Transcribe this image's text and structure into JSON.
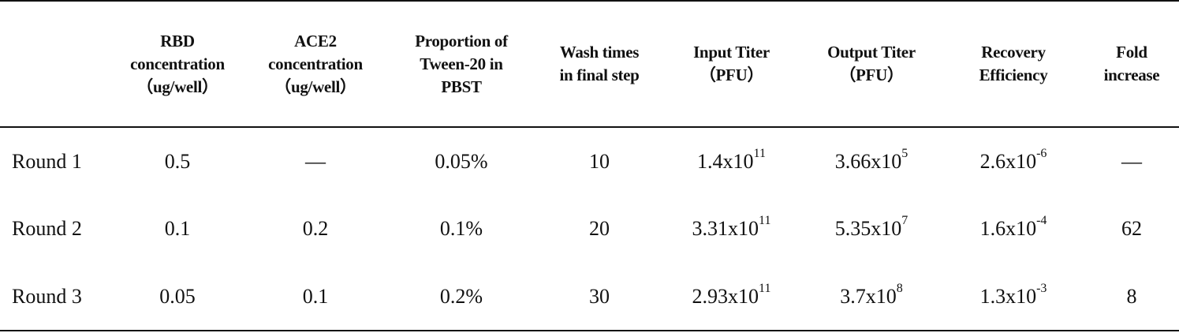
{
  "table": {
    "headers": [
      [
        ""
      ],
      [
        "RBD",
        "concentration",
        "（ug/well）"
      ],
      [
        "ACE2",
        "concentration",
        "（ug/well）"
      ],
      [
        "Proportion of",
        "Tween-20 in",
        "PBST"
      ],
      [
        "Wash times",
        "in final step"
      ],
      [
        "Input Titer",
        "（PFU）"
      ],
      [
        "Output Titer",
        "（PFU）"
      ],
      [
        "Recovery",
        "Efficiency"
      ],
      [
        "Fold",
        "increase"
      ]
    ],
    "rows": [
      {
        "label": "Round 1",
        "rbd": "0.5",
        "ace2": "—",
        "tween": "0.05%",
        "wash": "10",
        "input": {
          "base": "1.4x10",
          "exp": "11"
        },
        "output": {
          "base": "3.66x10",
          "exp": "5"
        },
        "recovery": {
          "base": "2.6x10",
          "exp": "-6"
        },
        "fold": "—"
      },
      {
        "label": "Round 2",
        "rbd": "0.1",
        "ace2": "0.2",
        "tween": "0.1%",
        "wash": "20",
        "input": {
          "base": "3.31x10",
          "exp": "11"
        },
        "output": {
          "base": "5.35x10",
          "exp": "7"
        },
        "recovery": {
          "base": "1.6x10",
          "exp": "-4"
        },
        "fold": "62"
      },
      {
        "label": "Round 3",
        "rbd": "0.05",
        "ace2": "0.1",
        "tween": "0.2%",
        "wash": "30",
        "input": {
          "base": "2.93x10",
          "exp": "11"
        },
        "output": {
          "base": "3.7x10",
          "exp": "8"
        },
        "recovery": {
          "base": "1.3x10",
          "exp": "-3"
        },
        "fold": "8"
      }
    ]
  }
}
